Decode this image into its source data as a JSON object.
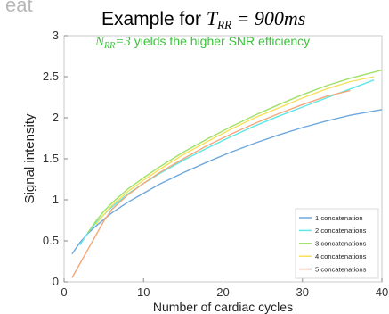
{
  "header_fragment": "eat",
  "chart_data": {
    "type": "line",
    "title": {
      "prefix": "Example for ",
      "symbol": "T",
      "symbol_sub": "RR",
      "equals": " = ",
      "value": "900ms"
    },
    "annotation": {
      "symbol": "N",
      "symbol_sub": "RR",
      "equals": "=3",
      "text": " yields the higher SNR efficiency",
      "color": "#3cc23c"
    },
    "xlabel": "Number of cardiac cycles",
    "ylabel": "Signal intensity",
    "xlim": [
      0,
      40
    ],
    "ylim": [
      0,
      3
    ],
    "xticks": [
      0,
      10,
      20,
      30,
      40
    ],
    "yticks": [
      0,
      0.5,
      1,
      1.5,
      2,
      2.5,
      3
    ],
    "ytick_labels": [
      "0",
      "0.5",
      "1",
      "1.5",
      "2",
      "2.5",
      "3"
    ],
    "grid": false,
    "legend_position": "bottom-right",
    "series": [
      {
        "name": "1 concatenation",
        "color": "#6fa8dc",
        "x": [
          1,
          2,
          3,
          4,
          5,
          6,
          8,
          10,
          12,
          15,
          18,
          21,
          24,
          27,
          30,
          33,
          36,
          40
        ],
        "y": [
          0.34,
          0.48,
          0.59,
          0.68,
          0.76,
          0.84,
          0.97,
          1.08,
          1.19,
          1.33,
          1.46,
          1.58,
          1.69,
          1.79,
          1.88,
          1.96,
          2.03,
          2.1
        ]
      },
      {
        "name": "2 concatenations",
        "color": "#5ee8e8",
        "x": [
          2,
          3,
          4,
          5,
          6,
          8,
          10,
          12,
          15,
          18,
          21,
          24,
          27,
          30,
          33,
          36,
          39
        ],
        "y": [
          0.45,
          0.6,
          0.72,
          0.82,
          0.91,
          1.07,
          1.2,
          1.32,
          1.48,
          1.63,
          1.77,
          1.9,
          2.02,
          2.13,
          2.24,
          2.35,
          2.46
        ]
      },
      {
        "name": "3 concatenations",
        "color": "#9fe06a",
        "x": [
          3,
          4,
          5,
          6,
          8,
          10,
          12,
          15,
          18,
          21,
          24,
          27,
          30,
          33,
          36,
          40
        ],
        "y": [
          0.6,
          0.74,
          0.86,
          0.96,
          1.13,
          1.27,
          1.4,
          1.58,
          1.74,
          1.89,
          2.03,
          2.16,
          2.28,
          2.39,
          2.48,
          2.58
        ]
      },
      {
        "name": "4 concatenations",
        "color": "#f7e05a",
        "x": [
          4,
          5,
          6,
          8,
          10,
          12,
          15,
          18,
          21,
          24,
          27,
          30,
          33,
          36,
          39
        ],
        "y": [
          0.7,
          0.82,
          0.93,
          1.1,
          1.24,
          1.37,
          1.55,
          1.71,
          1.86,
          2.0,
          2.12,
          2.24,
          2.35,
          2.44,
          2.5
        ]
      },
      {
        "name": "5 concatenations",
        "color": "#f4a77a",
        "x": [
          1,
          5,
          6,
          8,
          10,
          12,
          15,
          18,
          21,
          24,
          27,
          30,
          33,
          36
        ],
        "y": [
          0.05,
          0.74,
          0.88,
          1.06,
          1.2,
          1.33,
          1.5,
          1.66,
          1.8,
          1.93,
          2.05,
          2.16,
          2.26,
          2.33
        ]
      }
    ]
  }
}
